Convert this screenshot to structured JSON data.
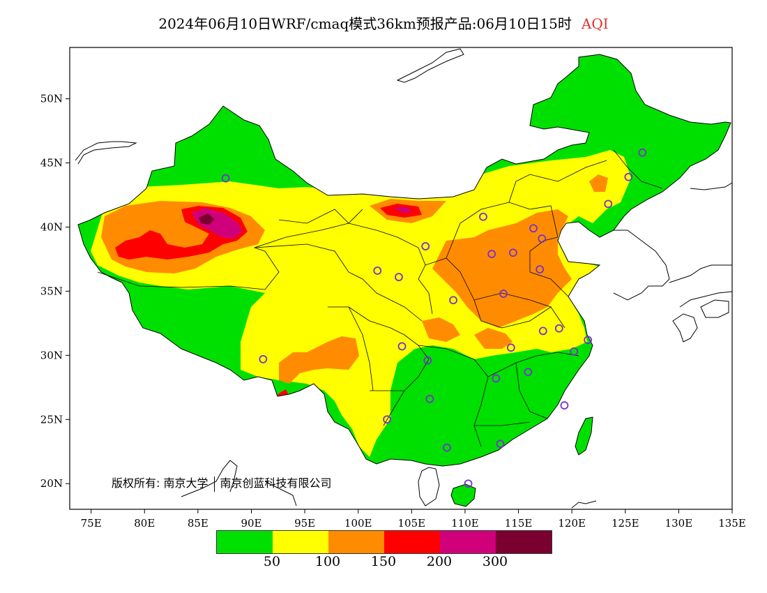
{
  "title": {
    "text": "2024年06月10日WRF/cmaq模式36km预报产品:06月10日15时",
    "variable": "AQI",
    "variable_color": "#e03030"
  },
  "map": {
    "lon_range": [
      73,
      135
    ],
    "lat_range": [
      18,
      54
    ],
    "x_ticks": [
      "75E",
      "80E",
      "85E",
      "90E",
      "95E",
      "100E",
      "105E",
      "110E",
      "115E",
      "120E",
      "125E",
      "130E",
      "135E"
    ],
    "y_ticks": [
      "20N",
      "25N",
      "30N",
      "35N",
      "40N",
      "45N",
      "50N"
    ],
    "station_marker_color": "#7a2fd0",
    "stations": [
      {
        "lon": 87.6,
        "lat": 43.8
      },
      {
        "lon": 91.1,
        "lat": 29.7
      },
      {
        "lon": 101.8,
        "lat": 36.6
      },
      {
        "lon": 103.8,
        "lat": 36.1
      },
      {
        "lon": 106.3,
        "lat": 38.5
      },
      {
        "lon": 111.7,
        "lat": 40.8
      },
      {
        "lon": 112.5,
        "lat": 37.9
      },
      {
        "lon": 114.5,
        "lat": 38.0
      },
      {
        "lon": 116.4,
        "lat": 39.9
      },
      {
        "lon": 117.2,
        "lat": 39.1
      },
      {
        "lon": 117.0,
        "lat": 36.7
      },
      {
        "lon": 113.6,
        "lat": 34.8
      },
      {
        "lon": 108.9,
        "lat": 34.3
      },
      {
        "lon": 104.1,
        "lat": 30.7
      },
      {
        "lon": 106.5,
        "lat": 29.6
      },
      {
        "lon": 106.7,
        "lat": 26.6
      },
      {
        "lon": 102.7,
        "lat": 25.0
      },
      {
        "lon": 108.3,
        "lat": 22.8
      },
      {
        "lon": 113.3,
        "lat": 23.1
      },
      {
        "lon": 110.3,
        "lat": 20.0
      },
      {
        "lon": 112.9,
        "lat": 28.2
      },
      {
        "lon": 114.3,
        "lat": 30.6
      },
      {
        "lon": 115.9,
        "lat": 28.7
      },
      {
        "lon": 117.3,
        "lat": 31.9
      },
      {
        "lon": 118.8,
        "lat": 32.1
      },
      {
        "lon": 120.2,
        "lat": 30.3
      },
      {
        "lon": 121.5,
        "lat": 31.2
      },
      {
        "lon": 119.3,
        "lat": 26.1
      },
      {
        "lon": 123.4,
        "lat": 41.8
      },
      {
        "lon": 125.3,
        "lat": 43.9
      },
      {
        "lon": 126.6,
        "lat": 45.8
      }
    ]
  },
  "legend": {
    "colors": [
      "#00e000",
      "#ffff00",
      "#ff8c00",
      "#ff0000",
      "#d0007a",
      "#7a0030"
    ],
    "labels": [
      "50",
      "100",
      "150",
      "200",
      "300"
    ]
  },
  "copyright": {
    "prefix": "版权所有:",
    "org1": "南京大学",
    "org2": "南京创蓝科技有限公司"
  }
}
